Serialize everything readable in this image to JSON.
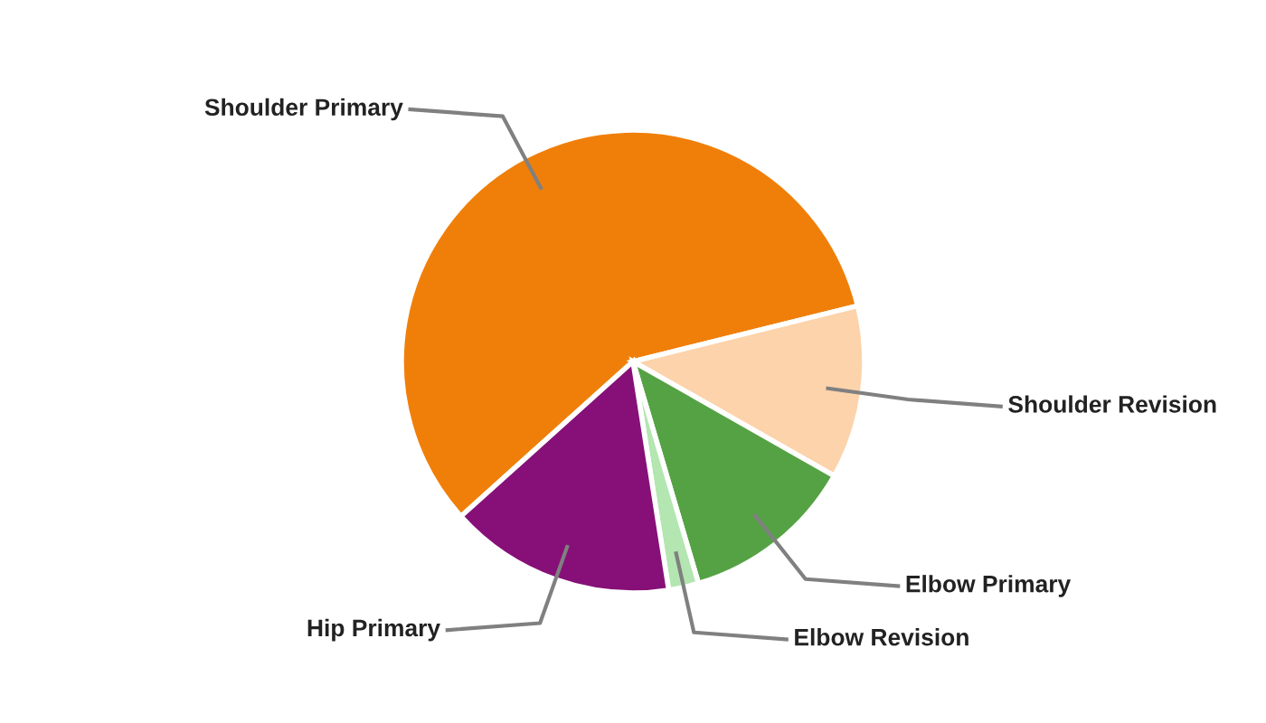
{
  "chart_data": {
    "type": "pie",
    "categories": [
      "Shoulder Primary",
      "Shoulder Revision",
      "Elbow Primary",
      "Elbow Revision",
      "Hip Primary"
    ],
    "values": [
      57.8,
      12.1,
      12.2,
      2.1,
      15.8
    ],
    "colors": [
      "#f07f09",
      "#fcd3ab",
      "#55a244",
      "#b3e6b0",
      "#861077"
    ]
  }
}
